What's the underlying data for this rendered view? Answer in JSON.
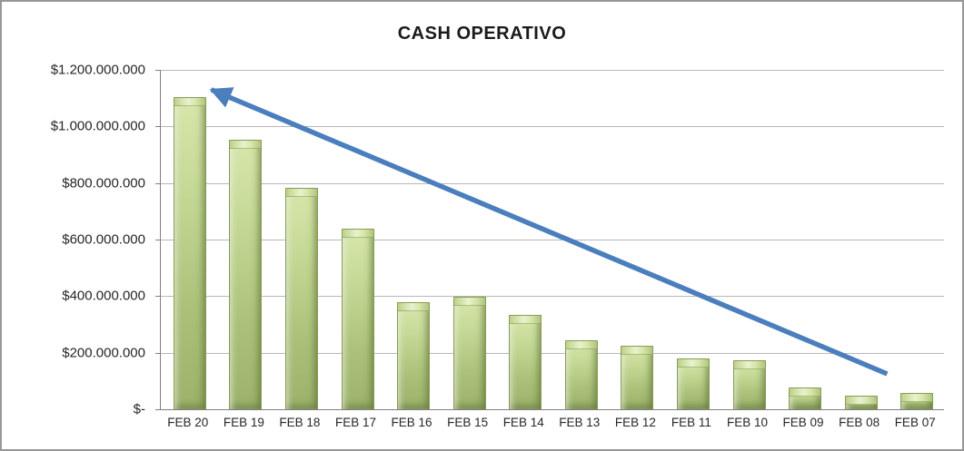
{
  "window": {
    "background_color": "#ffffff",
    "frame_border_color": "#979797"
  },
  "chart_data": {
    "type": "bar",
    "title": "CASH OPERATIVO",
    "categories": [
      "FEB 20",
      "FEB 19",
      "FEB 18",
      "FEB 17",
      "FEB 16",
      "FEB 15",
      "FEB 14",
      "FEB 13",
      "FEB 12",
      "FEB 11",
      "FEB 10",
      "FEB 09",
      "FEB 08",
      "FEB 07"
    ],
    "values": [
      1100000000,
      950000000,
      780000000,
      635000000,
      375000000,
      395000000,
      330000000,
      240000000,
      220000000,
      175000000,
      170000000,
      75000000,
      45000000,
      55000000
    ],
    "xlabel": "",
    "ylabel": "",
    "ylim": [
      0,
      1200000000
    ],
    "ytick_step": 200000000,
    "ytick_labels": [
      "$-",
      "$200.000.000",
      "$400.000.000",
      "$600.000.000",
      "$800.000.000",
      "$1.000.000.000",
      "$1.200.000.000"
    ],
    "grid": true,
    "legend": "none",
    "bar_color": "#b8cc84",
    "bar_border_color": "#879c56",
    "gridline_color": "#b7b7b7",
    "axis_color": "#808080",
    "annotation": {
      "type": "arrow",
      "description": "declining trend arrow pointing from low FEB 07/08 values up-left to the FEB 20 peak",
      "color": "#4a7ebd",
      "tail": {
        "category_index": 12.5,
        "value": 125000000
      },
      "head": {
        "category_index": 0.42,
        "value": 1130000000
      }
    }
  }
}
